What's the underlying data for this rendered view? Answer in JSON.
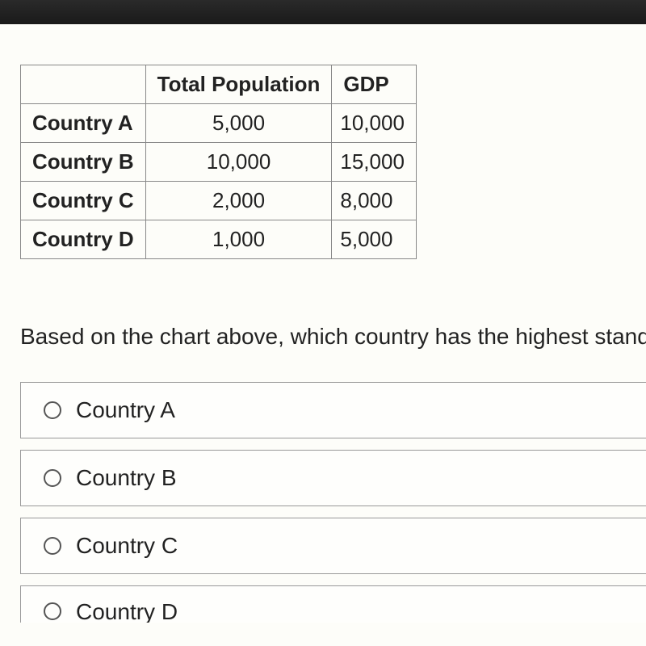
{
  "table": {
    "columns": [
      "",
      "Total Population",
      "GDP"
    ],
    "rows": [
      {
        "label": "Country A",
        "population": "5,000",
        "gdp": "10,000"
      },
      {
        "label": "Country B",
        "population": "10,000",
        "gdp": "15,000"
      },
      {
        "label": "Country C",
        "population": "2,000",
        "gdp": "8,000"
      },
      {
        "label": "Country D",
        "population": "1,000",
        "gdp": "5,000"
      }
    ],
    "border_color": "#888888",
    "font_size": 26,
    "header_weight": "bold"
  },
  "question": "Based on the chart above, which country has the highest standa",
  "options": [
    {
      "label": "Country A"
    },
    {
      "label": "Country B"
    },
    {
      "label": "Country C"
    },
    {
      "label": "Country D"
    }
  ],
  "colors": {
    "page_bg": "#fdfdf9",
    "option_border": "#999999",
    "text": "#222222",
    "top_strip": "#1a1a1a"
  }
}
